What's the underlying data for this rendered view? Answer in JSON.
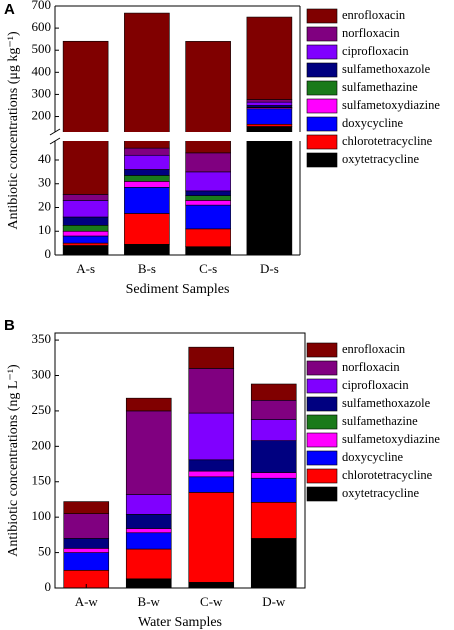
{
  "chart_data": [
    {
      "type": "bar",
      "stacked": true,
      "panel_label": "A",
      "ylabel": "Antibiotic concentrations (μg kg⁻¹)",
      "xlabel": "Sediment Samples",
      "categories": [
        "A-s",
        "B-s",
        "C-s",
        "D-s"
      ],
      "ylim": [
        0,
        700
      ],
      "ybreak": [
        48,
        130
      ],
      "yticks": [
        0,
        10,
        20,
        30,
        40,
        200,
        300,
        400,
        500,
        600,
        700
      ],
      "legend": "right",
      "series": [
        {
          "name": "oxytetracycline",
          "color": "#000000",
          "values": [
            4,
            4.5,
            3.5,
            155
          ]
        },
        {
          "name": "chlorotetracycline",
          "color": "#ff0000",
          "values": [
            1,
            13,
            7.5,
            10
          ]
        },
        {
          "name": "doxycycline",
          "color": "#0000ff",
          "values": [
            3,
            11,
            10,
            70
          ]
        },
        {
          "name": "sulfametoxydiazine",
          "color": "#ff00ff",
          "values": [
            2,
            2.5,
            2,
            5
          ]
        },
        {
          "name": "sulfamethazine",
          "color": "#1a7a1a",
          "values": [
            2.5,
            2.5,
            2,
            2
          ]
        },
        {
          "name": "sulfamethoxazole",
          "color": "#000080",
          "values": [
            3.5,
            2.5,
            2,
            8
          ]
        },
        {
          "name": "ciprofloxacin",
          "color": "#8000ff",
          "values": [
            7,
            6,
            8,
            15
          ]
        },
        {
          "name": "norfloxacin",
          "color": "#800080",
          "values": [
            2.5,
            3,
            8,
            12
          ]
        },
        {
          "name": "enrofloxacin",
          "color": "#800000",
          "values": [
            515,
            623,
            497,
            373
          ]
        }
      ]
    },
    {
      "type": "bar",
      "stacked": true,
      "panel_label": "B",
      "ylabel": "Antibiotic concentrations (ng L⁻¹)",
      "xlabel": "Water Samples",
      "categories": [
        "A-w",
        "B-w",
        "C-w",
        "D-w"
      ],
      "ylim": [
        0,
        360
      ],
      "yticks": [
        0,
        50,
        100,
        150,
        200,
        250,
        300,
        350
      ],
      "legend": "right",
      "series": [
        {
          "name": "oxytetracycline",
          "color": "#000000",
          "values": [
            0,
            13,
            8,
            70
          ]
        },
        {
          "name": "chlorotetracycline",
          "color": "#ff0000",
          "values": [
            25,
            42,
            127,
            51
          ]
        },
        {
          "name": "doxycycline",
          "color": "#0000ff",
          "values": [
            25,
            23,
            22,
            34
          ]
        },
        {
          "name": "sulfametoxydiazine",
          "color": "#ff00ff",
          "values": [
            6,
            6,
            8,
            8
          ]
        },
        {
          "name": "sulfamethazine",
          "color": "#1a7a1a",
          "values": [
            0,
            0,
            0,
            0
          ]
        },
        {
          "name": "sulfamethoxazole",
          "color": "#000080",
          "values": [
            14,
            20,
            16,
            45
          ]
        },
        {
          "name": "ciprofloxacin",
          "color": "#8000ff",
          "values": [
            0,
            28,
            66,
            30
          ]
        },
        {
          "name": "norfloxacin",
          "color": "#800080",
          "values": [
            35,
            118,
            63,
            27
          ]
        },
        {
          "name": "enrofloxacin",
          "color": "#800000",
          "values": [
            17,
            18,
            30,
            23
          ]
        }
      ]
    }
  ]
}
